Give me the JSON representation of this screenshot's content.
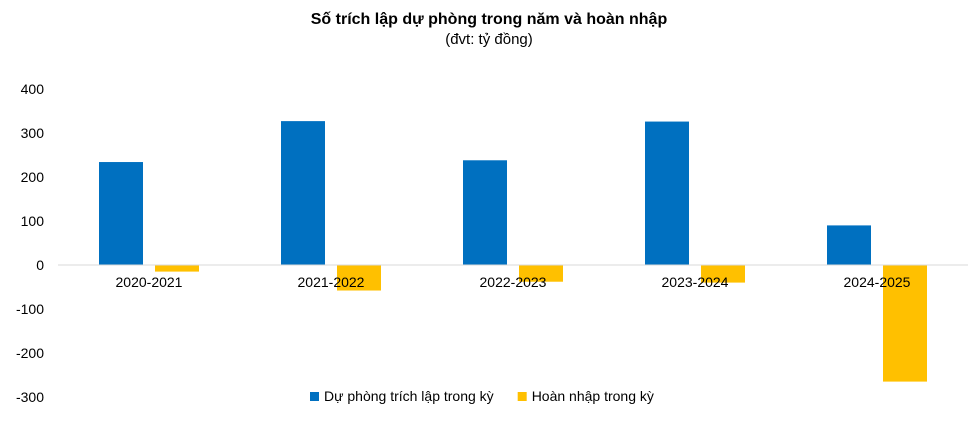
{
  "chart_data": {
    "type": "bar",
    "title": "Số trích lập dự phòng trong năm và hoàn nhập",
    "subtitle": "(đvt: tỷ đồng)",
    "categories": [
      "2020-2021",
      "2021-2022",
      "2022-2023",
      "2023-2024",
      "2024-2025"
    ],
    "series": [
      {
        "name": "Dự phòng trích lập trong kỳ",
        "color": "#0070C0",
        "values": [
          234,
          327,
          238,
          326,
          90
        ]
      },
      {
        "name": "Hoàn nhập trong kỳ",
        "color": "#FFC000",
        "values": [
          -15,
          -58,
          -38,
          -40,
          -265
        ]
      }
    ],
    "ylim": [
      -300,
      400
    ],
    "yticks": [
      400,
      300,
      200,
      100,
      0,
      -100,
      -200,
      -300
    ],
    "xlabel": "",
    "ylabel": "",
    "grid": false,
    "legend": "bottom"
  }
}
